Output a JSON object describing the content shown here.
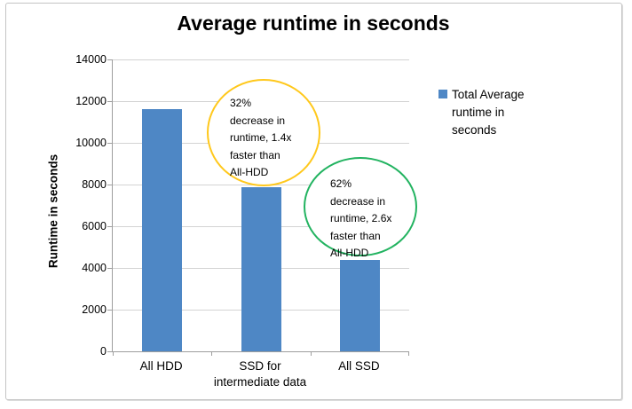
{
  "chart_data": {
    "type": "bar",
    "title": "Average runtime in seconds",
    "xlabel": "",
    "ylabel": "Runtime in seconds",
    "categories": [
      "All HDD",
      "SSD for intermediate data",
      "All SSD"
    ],
    "series": [
      {
        "name": "Total Average runtime in seconds",
        "values": [
          11600,
          7880,
          4400
        ]
      }
    ],
    "ylim": [
      0,
      14000
    ],
    "ytick_step": 2000,
    "grid": true,
    "legend_position": "right",
    "legend_lines": [
      "Total Average",
      "runtime in",
      "seconds"
    ],
    "colors": {
      "bar": "#4E87C5",
      "gridline": "#D3D3D3",
      "axis": "#9E9E9E",
      "annotation_yellow": "#FFC81C",
      "annotation_green": "#22B360"
    },
    "annotations": [
      {
        "shape": "circle",
        "color": "#FFC81C",
        "target_category": "SSD for intermediate data",
        "text": "32% decrease in runtime, 1.4x faster than All-HDD",
        "lines": [
          "32%",
          "decrease in",
          "runtime, 1.4x",
          "faster than",
          "All-HDD"
        ]
      },
      {
        "shape": "circle",
        "color": "#22B360",
        "target_category": "All SSD",
        "text": "62% decrease in runtime, 2.6x faster than All-HDD",
        "lines": [
          "62%",
          "decrease in",
          "runtime, 2.6x",
          "faster than",
          "All-HDD"
        ]
      }
    ]
  }
}
